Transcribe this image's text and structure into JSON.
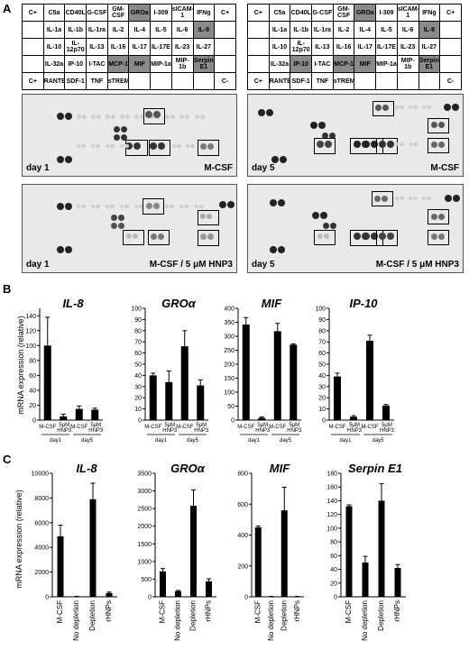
{
  "panels": {
    "A": "A",
    "B": "B",
    "C": "C"
  },
  "array_grid": {
    "rows": [
      [
        "C+",
        "C5a",
        "CD40L",
        "G-CSF",
        "GM-CSF",
        "GROa",
        "I-309",
        "sICAM-1",
        "IFNg",
        "C+"
      ],
      [
        "",
        "IL-1a",
        "IL-1b",
        "IL-1ra",
        "IL-2",
        "IL-4",
        "IL-5",
        "IL-6",
        "IL-8",
        ""
      ],
      [
        "",
        "IL-10",
        "IL-12p70",
        "IL-13",
        "IL-16",
        "IL-17",
        "IL-17E",
        "IL-23",
        "IL-27",
        ""
      ],
      [
        "",
        "IL-32a",
        "IP-10",
        "I-TAC",
        "MCP-1",
        "MIF",
        "MIP-1a",
        "MIP-1b",
        "Serpin E1",
        ""
      ],
      [
        "C+",
        "RANTES",
        "SDF-1",
        "TNF",
        "sTREM",
        "",
        "",
        "",
        "",
        "C-"
      ]
    ],
    "left_highlights": [
      "GROa",
      "IL-8",
      "MCP-1",
      "MIF",
      "Serpin E1"
    ],
    "right_highlights": [
      "GROa",
      "IL-8",
      "IP-10",
      "MCP-1",
      "MIF",
      "Serpin E1"
    ]
  },
  "blots": [
    {
      "day": "day 1",
      "condition": "M-CSF"
    },
    {
      "day": "day 5",
      "condition": "M-CSF"
    },
    {
      "day": "day 1",
      "condition": "M-CSF / 5 μM HNP3"
    },
    {
      "day": "day 5",
      "condition": "M-CSF / 5 μM HNP3"
    }
  ],
  "panel_B": {
    "ylabel": "mRNA expression (relative)",
    "bar_labels": [
      "M-CSF",
      "5μM HNP3",
      "M-CSF",
      "5μM HNP3"
    ],
    "groups": [
      "day1",
      "day5"
    ]
  },
  "panel_C": {
    "ylabel": "mRNA expression (relative)",
    "categories": [
      "M-CSF",
      "No depletion",
      "Depletion",
      "rHNPs"
    ]
  },
  "chart_data": [
    {
      "type": "bar",
      "panel": "B",
      "title": "IL-8",
      "ylabel": "mRNA expression (relative)",
      "categories": [
        "day1 M-CSF",
        "day1 5μM HNP3",
        "day5 M-CSF",
        "day5 5μM HNP3"
      ],
      "values": [
        100,
        5,
        15,
        14
      ],
      "errors": [
        38,
        3,
        4,
        2
      ],
      "ylim": [
        0,
        150
      ],
      "yticks": [
        0,
        20,
        40,
        60,
        80,
        100,
        120,
        140
      ]
    },
    {
      "type": "bar",
      "panel": "B",
      "title": "GROα",
      "ylabel": "",
      "categories": [
        "day1 M-CSF",
        "day1 5μM HNP3",
        "day5 M-CSF",
        "day5 5μM HNP3"
      ],
      "values": [
        40,
        34,
        66,
        31
      ],
      "errors": [
        2,
        10,
        14,
        5
      ],
      "ylim": [
        0,
        100
      ],
      "yticks": [
        0,
        10,
        20,
        30,
        40,
        50,
        60,
        70,
        80,
        90,
        100
      ]
    },
    {
      "type": "bar",
      "panel": "B",
      "title": "MIF",
      "ylabel": "",
      "categories": [
        "day1 M-CSF",
        "day1 5μM HNP3",
        "day5 M-CSF",
        "day5 5μM HNP3"
      ],
      "values": [
        342,
        8,
        318,
        270
      ],
      "errors": [
        25,
        3,
        28,
        3
      ],
      "ylim": [
        0,
        400
      ],
      "yticks": [
        0,
        50,
        100,
        150,
        200,
        250,
        300,
        350,
        400
      ]
    },
    {
      "type": "bar",
      "panel": "B",
      "title": "IP-10",
      "ylabel": "",
      "categories": [
        "day1 M-CSF",
        "day1 5μM HNP3",
        "day5 M-CSF",
        "day5 5μM HNP3"
      ],
      "values": [
        39,
        3,
        71,
        13
      ],
      "errors": [
        3,
        1,
        5,
        1
      ],
      "ylim": [
        0,
        100
      ],
      "yticks": [
        0,
        10,
        20,
        30,
        40,
        50,
        60,
        70,
        80,
        90,
        100
      ]
    },
    {
      "type": "bar",
      "panel": "C",
      "title": "IL-8",
      "ylabel": "mRNA expression (relative)",
      "categories": [
        "M-CSF",
        "No depletion",
        "Depletion",
        "rHNPs"
      ],
      "values": [
        4900,
        30,
        7900,
        300
      ],
      "errors": [
        900,
        10,
        1300,
        80
      ],
      "ylim": [
        0,
        10000
      ],
      "yticks": [
        0,
        2000,
        4000,
        6000,
        8000,
        10000
      ]
    },
    {
      "type": "bar",
      "panel": "C",
      "title": "GROα",
      "ylabel": "",
      "categories": [
        "M-CSF",
        "No depletion",
        "Depletion",
        "rHNPs"
      ],
      "values": [
        720,
        160,
        2580,
        440
      ],
      "errors": [
        80,
        20,
        450,
        70
      ],
      "ylim": [
        0,
        3500
      ],
      "yticks": [
        0,
        500,
        1000,
        1500,
        2000,
        2500,
        3000,
        3500
      ]
    },
    {
      "type": "bar",
      "panel": "C",
      "title": "MIF",
      "ylabel": "",
      "categories": [
        "M-CSF",
        "No depletion",
        "Depletion",
        "rHNPs"
      ],
      "values": [
        450,
        2,
        560,
        2
      ],
      "errors": [
        8,
        1,
        150,
        1
      ],
      "ylim": [
        0,
        800
      ],
      "yticks": [
        0,
        200,
        400,
        600,
        800
      ]
    },
    {
      "type": "bar",
      "panel": "C",
      "title": "Serpin E1",
      "ylabel": "",
      "categories": [
        "M-CSF",
        "No depletion",
        "Depletion",
        "rHNPs"
      ],
      "values": [
        132,
        50,
        140,
        42
      ],
      "errors": [
        2,
        9,
        25,
        5
      ],
      "ylim": [
        0,
        180
      ],
      "yticks": [
        0,
        20,
        40,
        60,
        80,
        100,
        120,
        140,
        160,
        180
      ]
    }
  ]
}
